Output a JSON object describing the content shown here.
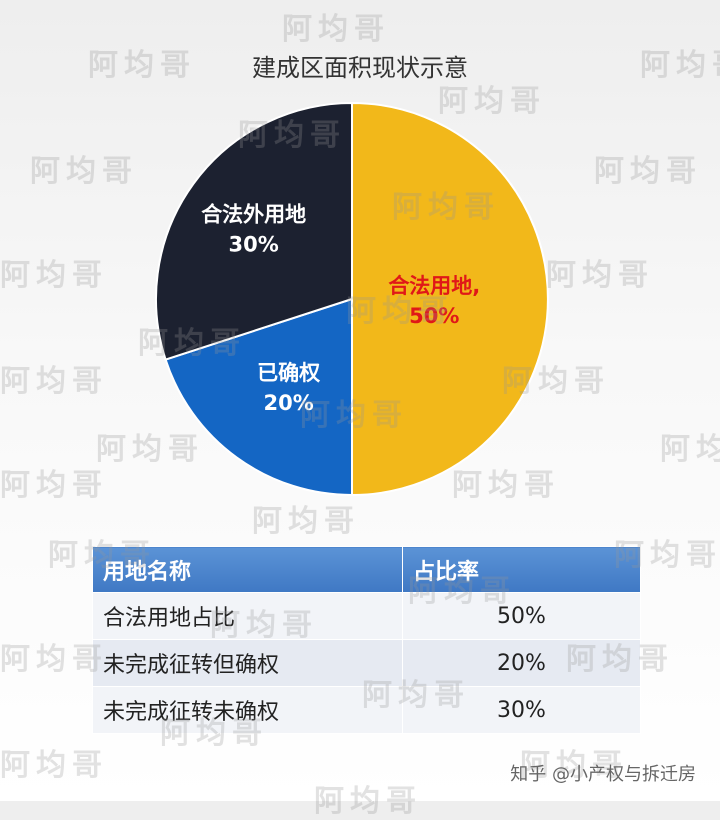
{
  "chart_data": {
    "type": "pie",
    "title": "建成区面积现状示意",
    "slices": [
      {
        "label": "合法用地,",
        "value": 50,
        "display": "50%",
        "color": "#f2b81a",
        "label_color": "#e01818"
      },
      {
        "label": "已确权",
        "value": 20,
        "display": "20%",
        "color": "#1466c4",
        "label_color": "#ffffff"
      },
      {
        "label": "合法外用地",
        "value": 30,
        "display": "30%",
        "color": "#1c2130",
        "label_color": "#ffffff"
      }
    ]
  },
  "table": {
    "headers": [
      "用地名称",
      "占比率"
    ],
    "rows": [
      [
        "合法用地占比",
        "50%"
      ],
      [
        "未完成征转但确权",
        "20%"
      ],
      [
        "未完成征转未确权",
        "30%"
      ]
    ]
  },
  "watermark_text": "阿均哥",
  "credit": "知乎 @小产权与拆迁房"
}
